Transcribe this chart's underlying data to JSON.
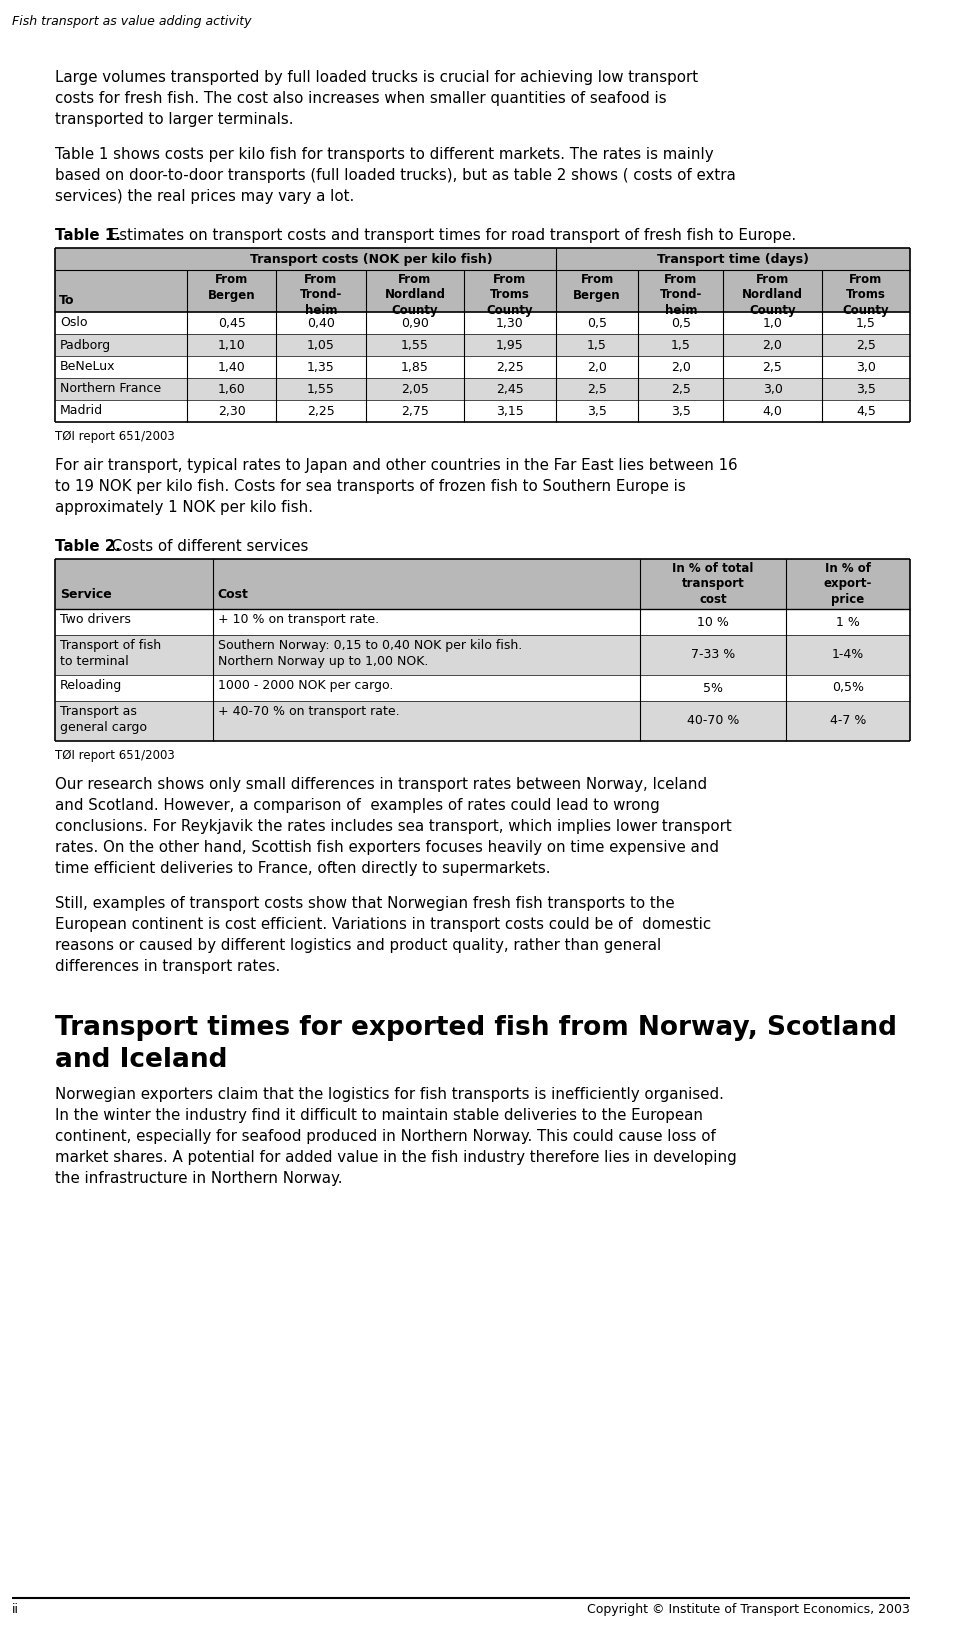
{
  "header_italic": "Fish transport as value adding activity",
  "para1_lines": [
    "Large volumes transported by full loaded trucks is crucial for achieving low transport",
    "costs for fresh fish. The cost also increases when smaller quantities of seafood is",
    "transported to larger terminals."
  ],
  "para2_lines": [
    "Table 1 shows costs per kilo fish for transports to different markets. The rates is mainly",
    "based on door-to-door transports (full loaded trucks), but as table 2 shows ( costs of extra",
    "services) the real prices may vary a lot."
  ],
  "table1_title_bold": "Table 1.",
  "table1_title_rest": " Estimates on transport costs and transport times for road transport of fresh fish to Europe.",
  "table1_rows": [
    [
      "Oslo",
      "0,45",
      "0,40",
      "0,90",
      "1,30",
      "0,5",
      "0,5",
      "1,0",
      "1,5"
    ],
    [
      "Padborg",
      "1,10",
      "1,05",
      "1,55",
      "1,95",
      "1,5",
      "1,5",
      "2,0",
      "2,5"
    ],
    [
      "BeNeLux",
      "1,40",
      "1,35",
      "1,85",
      "2,25",
      "2,0",
      "2,0",
      "2,5",
      "3,0"
    ],
    [
      "Northern France",
      "1,60",
      "1,55",
      "2,05",
      "2,45",
      "2,5",
      "2,5",
      "3,0",
      "3,5"
    ],
    [
      "Madrid",
      "2,30",
      "2,25",
      "2,75",
      "3,15",
      "3,5",
      "3,5",
      "4,0",
      "4,5"
    ]
  ],
  "table1_source": "TØI report 651/2003",
  "para3_lines": [
    "For air transport, typical rates to Japan and other countries in the Far East lies between 16",
    "to 19 NOK per kilo fish. Costs for sea transports of frozen fish to Southern Europe is",
    "approximately 1 NOK per kilo fish."
  ],
  "table2_title_bold": "Table 2.",
  "table2_title_rest": " Costs of different services",
  "table2_rows": [
    [
      "Two drivers",
      "+ 10 % on transport rate.",
      "10 %",
      "1 %"
    ],
    [
      "Transport of fish\nto terminal",
      "Southern Norway: 0,15 to 0,40 NOK per kilo fish.\nNorthern Norway up to 1,00 NOK.",
      "7-33 %",
      "1-4%"
    ],
    [
      "Reloading",
      "1000 - 2000 NOK per cargo.",
      "5%",
      "0,5%"
    ],
    [
      "Transport as\ngeneral cargo",
      "+ 40-70 % on transport rate.",
      "40-70 %",
      "4-7 %"
    ]
  ],
  "table2_source": "TØI report 651/2003",
  "para4_lines": [
    "Our research shows only small differences in transport rates between Norway, Iceland",
    "and Scotland. However, a comparison of  examples of rates could lead to wrong",
    "conclusions. For Reykjavik the rates includes sea transport, which implies lower transport",
    "rates. On the other hand, Scottish fish exporters focuses heavily on time expensive and",
    "time efficient deliveries to France, often directly to supermarkets."
  ],
  "para5_lines": [
    "Still, examples of transport costs show that Norwegian fresh fish transports to the",
    "European continent is cost efficient. Variations in transport costs could be of  domestic",
    "reasons or caused by different logistics and product quality, rather than general",
    "differences in transport rates."
  ],
  "section_title_line1": "Transport times for exported fish from Norway, Scotland",
  "section_title_line2": "and Iceland",
  "para6_lines": [
    "Norwegian exporters claim that the logistics for fish transports is inefficiently organised.",
    "In the winter the industry find it difficult to maintain stable deliveries to the European",
    "continent, especially for seafood produced in Northern Norway. This could cause loss of",
    "market shares. A potential for added value in the fish industry therefore lies in developing",
    "the infrastructure in Northern Norway."
  ],
  "footer_left": "ii",
  "footer_right": "Copyright © Institute of Transport Economics, 2003",
  "bg_color": "#ffffff",
  "table_header_bg": "#b8b8b8",
  "table_alt_row_bg": "#d8d8d8",
  "table_white_row_bg": "#ffffff"
}
